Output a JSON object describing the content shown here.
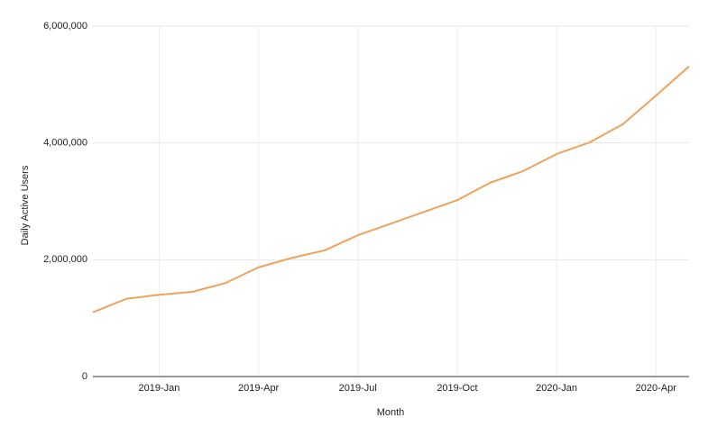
{
  "chart_data": {
    "type": "line",
    "x_label": "Month",
    "y_label": "Daily Active Users",
    "categories": [
      null,
      null,
      "2019-Jan",
      null,
      null,
      "2019-Apr",
      null,
      null,
      "2019-Jul",
      null,
      null,
      "2019-Oct",
      null,
      null,
      "2020-Jan",
      null,
      null,
      "2020-Apr",
      null
    ],
    "series": [
      {
        "name": "Daily Active Users",
        "color": "#eea35c",
        "values": [
          1100000,
          1330000,
          1400000,
          1450000,
          1600000,
          1870000,
          2030000,
          2160000,
          2420000,
          2620000,
          2820000,
          3020000,
          3320000,
          3520000,
          3810000,
          4010000,
          4320000,
          4810000,
          5310000
        ]
      }
    ],
    "ylim": [
      0,
      6000000
    ],
    "yticks": [
      0,
      {
        "value": 2000000,
        "label": "2,000,000"
      },
      {
        "value": 4000000,
        "label": "4,000,000"
      },
      {
        "value": 6000000,
        "label": "6,000,000"
      }
    ],
    "grid": true
  }
}
